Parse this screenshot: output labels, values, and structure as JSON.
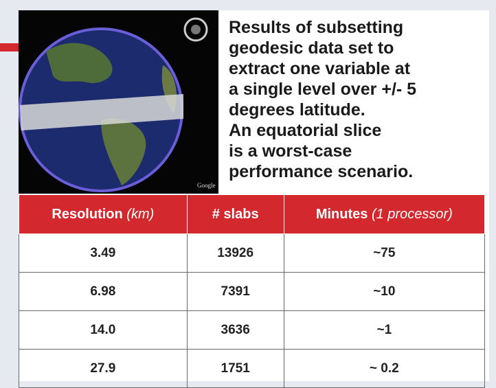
{
  "description": {
    "lines": [
      "Results of subsetting",
      "geodesic data set to",
      "extract one variable at",
      "a single level over +/- 5",
      "degrees latitude.",
      "An equatorial slice",
      "is a worst-case",
      "performance scenario."
    ]
  },
  "image": {
    "watermark": "Google"
  },
  "table": {
    "header": [
      {
        "main": "Resolution",
        "unit": "(km)"
      },
      {
        "main": "# slabs",
        "unit": null
      },
      {
        "main": "Minutes",
        "unit": "(1 processor)"
      }
    ],
    "rows": [
      [
        "3.49",
        "13926",
        "~75"
      ],
      [
        "6.98",
        "7391",
        "~10"
      ],
      [
        "14.0",
        "3636",
        "~1"
      ],
      [
        "27.9",
        "1751",
        "~ 0.2"
      ]
    ]
  }
}
